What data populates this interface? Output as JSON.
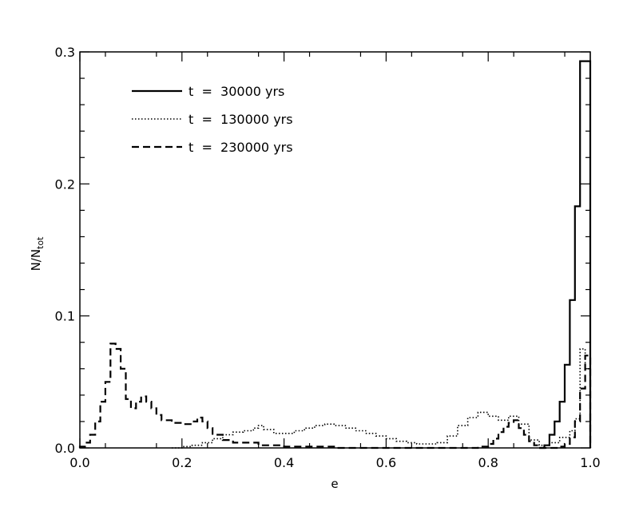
{
  "chart_data": {
    "type": "line",
    "step": true,
    "xlabel": "e",
    "ylabel_main": "N/N",
    "ylabel_sub": "tot",
    "xlim": [
      0.0,
      1.0
    ],
    "ylim": [
      0.0,
      0.3
    ],
    "x_ticks": [
      "0.0",
      "0.2",
      "0.4",
      "0.6",
      "0.8",
      "1.0"
    ],
    "y_ticks": [
      "0.0",
      "0.1",
      "0.2",
      "0.3"
    ],
    "legend_position": "top-left",
    "series": [
      {
        "name": "t = 30000 yrs",
        "style": "solid",
        "x": [
          0.9,
          0.91,
          0.92,
          0.93,
          0.94,
          0.95,
          0.96,
          0.97,
          0.98,
          0.99,
          1.0
        ],
        "y": [
          0.0,
          0.002,
          0.01,
          0.02,
          0.035,
          0.063,
          0.112,
          0.183,
          0.293,
          0.293,
          0.0
        ]
      },
      {
        "name": "t = 130000 yrs",
        "style": "dotted",
        "x": [
          0.18,
          0.2,
          0.22,
          0.24,
          0.26,
          0.28,
          0.3,
          0.32,
          0.34,
          0.35,
          0.36,
          0.38,
          0.4,
          0.42,
          0.44,
          0.46,
          0.48,
          0.5,
          0.52,
          0.54,
          0.56,
          0.58,
          0.6,
          0.62,
          0.64,
          0.66,
          0.68,
          0.7,
          0.72,
          0.74,
          0.76,
          0.78,
          0.8,
          0.82,
          0.84,
          0.86,
          0.88,
          0.9,
          0.92,
          0.94,
          0.96,
          0.97,
          0.98,
          0.99,
          1.0
        ],
        "y": [
          0.0,
          0.001,
          0.002,
          0.004,
          0.007,
          0.01,
          0.012,
          0.013,
          0.015,
          0.017,
          0.014,
          0.011,
          0.011,
          0.013,
          0.015,
          0.017,
          0.018,
          0.017,
          0.015,
          0.013,
          0.011,
          0.009,
          0.007,
          0.005,
          0.004,
          0.003,
          0.003,
          0.004,
          0.009,
          0.017,
          0.023,
          0.027,
          0.024,
          0.021,
          0.024,
          0.018,
          0.006,
          0.002,
          0.004,
          0.008,
          0.013,
          0.022,
          0.075,
          0.06,
          0.0
        ]
      },
      {
        "name": "t = 230000 yrs",
        "style": "dashed",
        "x": [
          0.0,
          0.01,
          0.02,
          0.03,
          0.04,
          0.05,
          0.06,
          0.07,
          0.08,
          0.09,
          0.1,
          0.11,
          0.12,
          0.13,
          0.14,
          0.15,
          0.16,
          0.18,
          0.2,
          0.22,
          0.23,
          0.24,
          0.25,
          0.26,
          0.28,
          0.3,
          0.35,
          0.4,
          0.45,
          0.5,
          0.55,
          0.6,
          0.65,
          0.7,
          0.75,
          0.78,
          0.8,
          0.81,
          0.82,
          0.83,
          0.84,
          0.85,
          0.86,
          0.87,
          0.88,
          0.89,
          0.9,
          0.92,
          0.94,
          0.95,
          0.96,
          0.97,
          0.98,
          0.99,
          1.0
        ],
        "y": [
          0.001,
          0.004,
          0.01,
          0.02,
          0.035,
          0.05,
          0.079,
          0.075,
          0.06,
          0.037,
          0.03,
          0.035,
          0.039,
          0.035,
          0.03,
          0.025,
          0.021,
          0.019,
          0.018,
          0.02,
          0.023,
          0.02,
          0.015,
          0.01,
          0.006,
          0.004,
          0.002,
          0.001,
          0.001,
          0.0,
          0.0,
          0.0,
          0.0,
          0.0,
          0.0,
          0.001,
          0.003,
          0.007,
          0.012,
          0.016,
          0.019,
          0.021,
          0.015,
          0.01,
          0.005,
          0.002,
          0.0,
          0.0,
          0.001,
          0.003,
          0.008,
          0.02,
          0.045,
          0.07,
          0.0
        ]
      }
    ]
  }
}
